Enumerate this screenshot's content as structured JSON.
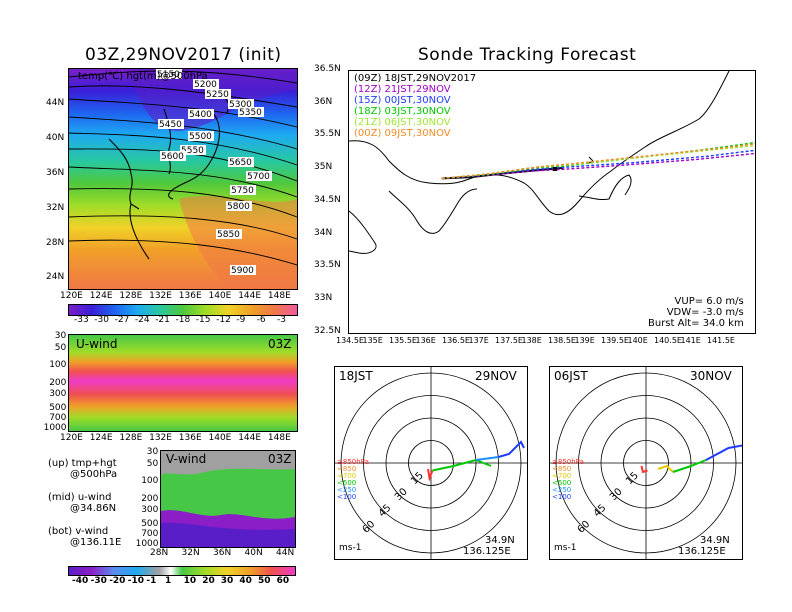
{
  "left_title": "03Z,29NOV2017 (init)",
  "right_title": "Sonde Tracking Forecast",
  "map_panel": {
    "overlay_label": "temp(℃) hgt(m)@500hPa",
    "contour_labels": [
      "5150",
      "5200",
      "5250",
      "5300",
      "5350",
      "5400",
      "5450",
      "5500",
      "5550",
      "5600",
      "5650",
      "5700",
      "5750",
      "5800",
      "5850",
      "5900"
    ],
    "lat_ticks": [
      "44N",
      "40N",
      "36N",
      "32N",
      "28N",
      "24N"
    ],
    "lon_ticks": [
      "120E",
      "124E",
      "128E",
      "132E",
      "136E",
      "140E",
      "144E",
      "148E"
    ],
    "colorbar_ticks": [
      "-33",
      "-30",
      "-27",
      "-24",
      "-21",
      "-18",
      "-15",
      "-12",
      "-9",
      "-6",
      "-3"
    ]
  },
  "uwind_panel": {
    "label": "U-wind",
    "time": "03Z",
    "p_ticks": [
      "30",
      "50",
      "100",
      "200",
      "300",
      "500",
      "700",
      "1000"
    ],
    "lon_ticks": [
      "120E",
      "124E",
      "128E",
      "132E",
      "136E",
      "140E",
      "144E",
      "148E"
    ]
  },
  "vwind_panel": {
    "label": "V-wind",
    "time": "03Z",
    "p_ticks": [
      "30",
      "50",
      "100",
      "200",
      "300",
      "500",
      "700",
      "1000"
    ],
    "lat_ticks": [
      "28N",
      "32N",
      "36N",
      "40N",
      "44N"
    ]
  },
  "wind_colorbar_ticks": [
    "-40",
    "-30",
    "-20",
    "-10",
    "-1",
    "1",
    "10",
    "20",
    "30",
    "40",
    "50",
    "60"
  ],
  "legend_notes": [
    {
      "line1": "(up) tmp+hgt",
      "line2": "@500hPa"
    },
    {
      "line1": "(mid) u-wind",
      "line2": "@34.86N"
    },
    {
      "line1": "(bot) v-wind",
      "line2": "@136.11E"
    }
  ],
  "tracking_panel": {
    "legend": [
      {
        "text": "(09Z)  18JST,29NOV2017",
        "color": "#000000"
      },
      {
        "text": "(12Z)  21JST,29NOV",
        "color": "#a000c8"
      },
      {
        "text": "(15Z)  00JST,30NOV",
        "color": "#1e3cff"
      },
      {
        "text": "(18Z)  03JST,30NOV",
        "color": "#00c800"
      },
      {
        "text": "(21Z)  06JST,30NOV",
        "color": "#a0e632"
      },
      {
        "text": "(00Z)  09JST,30NOV",
        "color": "#f08c28"
      }
    ],
    "lat_ticks": [
      "36.5N",
      "36N",
      "35.5N",
      "35N",
      "34.5N",
      "34N",
      "33.5N",
      "33N",
      "32.5N"
    ],
    "lon_ticks": [
      "134.5E",
      "135E",
      "135.5E",
      "136E",
      "136.5E",
      "137E",
      "137.5E",
      "138E",
      "138.5E",
      "139E",
      "139.5E",
      "140E",
      "140.5E",
      "141E",
      "141.5E"
    ],
    "params": [
      "VUP=  6.0 m/s",
      "VDW= -3.0 m/s",
      "Burst Alt=  34.0  km"
    ]
  },
  "hodographs": [
    {
      "jst": "18JST",
      "date": "29NOV"
    },
    {
      "jst": "06JST",
      "date": "30NOV"
    }
  ],
  "hodo_common": {
    "ring_labels": [
      "15",
      "30",
      "45",
      "60"
    ],
    "unit": "ms-1",
    "lat": "34.9N",
    "lon": "136.125E",
    "levels": [
      {
        "text": "≥850hPa",
        "color": "#ff3030"
      },
      {
        "text": "<850",
        "color": "#f08c28"
      },
      {
        "text": "<700",
        "color": "#e6c800"
      },
      {
        "text": "<500",
        "color": "#00c800"
      },
      {
        "text": "<250",
        "color": "#1e90ff"
      },
      {
        "text": "<100",
        "color": "#1e3cff"
      }
    ]
  },
  "chart_data": [
    {
      "type": "heatmap",
      "title": "03Z,29NOV2017 (init)",
      "variable": "temp(℃) hgt(m)@500hPa",
      "xlim": [
        120,
        150
      ],
      "ylim": [
        22,
        48
      ],
      "x_ticks": [
        120,
        124,
        128,
        132,
        136,
        140,
        144,
        148
      ],
      "y_ticks": [
        24,
        28,
        32,
        36,
        40,
        44
      ],
      "color_levels": [
        -33,
        -30,
        -27,
        -24,
        -21,
        -18,
        -15,
        -12,
        -9,
        -6,
        -3
      ],
      "height_contours": [
        5150,
        5200,
        5250,
        5300,
        5350,
        5400,
        5450,
        5500,
        5550,
        5600,
        5650,
        5700,
        5750,
        5800,
        5850,
        5900
      ]
    },
    {
      "type": "heatmap",
      "variable": "U-wind @34.86N",
      "xlim": [
        120,
        150
      ],
      "y_pressure_levels": [
        30,
        50,
        100,
        200,
        300,
        500,
        700,
        1000
      ],
      "max_region": {
        "p_top": 150,
        "p_bottom": 300
      }
    },
    {
      "type": "heatmap",
      "variable": "V-wind @136.11E",
      "xlim": [
        28,
        44
      ],
      "y_pressure_levels": [
        30,
        50,
        100,
        200,
        300,
        500,
        700,
        1000
      ],
      "color_levels": [
        -40,
        -30,
        -20,
        -10,
        -1,
        1,
        10,
        20,
        30,
        40,
        50,
        60
      ]
    },
    {
      "type": "line",
      "title": "Sonde Tracking Forecast",
      "xlim": [
        134.5,
        141.5
      ],
      "ylim": [
        32.5,
        36.5
      ],
      "launch": {
        "lon": 136.125,
        "lat": 34.86
      },
      "series": [
        {
          "name": "(09Z)  18JST,29NOV2017",
          "x": [
            136.1,
            136.6,
            137.2,
            137.8,
            138.2
          ],
          "y": [
            34.86,
            34.88,
            34.94,
            34.99,
            35.02
          ]
        },
        {
          "name": "(12Z)  21JST,29NOV",
          "x": [
            136.1,
            136.8,
            137.6,
            138.2,
            139.2,
            140.5,
            141.6
          ],
          "y": [
            34.86,
            34.9,
            34.97,
            35.0,
            35.06,
            35.15,
            35.25
          ]
        },
        {
          "name": "(15Z)  00JST,30NOV",
          "x": [
            136.1,
            136.8,
            137.6,
            138.2,
            139.4,
            140.7,
            141.6
          ],
          "y": [
            34.86,
            34.91,
            34.99,
            35.03,
            35.1,
            35.2,
            35.3
          ]
        },
        {
          "name": "(18Z)  03JST,30NOV",
          "x": [
            136.1,
            136.9,
            137.7,
            138.2,
            139.5,
            140.8,
            141.6
          ],
          "y": [
            34.86,
            34.92,
            35.02,
            35.05,
            35.18,
            35.32,
            35.42
          ]
        },
        {
          "name": "(21Z)  06JST,30NOV",
          "x": [
            136.1,
            136.9,
            137.7,
            138.3,
            139.5,
            140.8,
            141.6
          ],
          "y": [
            34.86,
            34.93,
            35.03,
            35.07,
            35.18,
            35.3,
            35.37
          ]
        },
        {
          "name": "(00Z)  09JST,30NOV",
          "x": [
            136.1,
            136.9,
            137.8,
            138.3,
            139.6,
            140.9,
            141.6
          ],
          "y": [
            34.86,
            34.93,
            35.04,
            35.08,
            35.2,
            35.32,
            35.4
          ]
        }
      ]
    },
    {
      "type": "scatter",
      "title": "18JST 29NOV",
      "rings": [
        15,
        30,
        45,
        60
      ],
      "hodograph": [
        {
          "level": "≥850hPa",
          "u": [
            -2,
            -1,
            1
          ],
          "v": [
            -4,
            -10,
            -5
          ]
        },
        {
          "level": "<500",
          "u": [
            1,
            15,
            30,
            40
          ],
          "v": [
            -5,
            -2,
            2,
            -2
          ]
        },
        {
          "level": "<250",
          "u": [
            30,
            45
          ],
          "v": [
            2,
            4
          ]
        },
        {
          "level": "<100",
          "u": [
            45,
            52,
            60,
            62
          ],
          "v": [
            4,
            6,
            14,
            10
          ]
        }
      ]
    },
    {
      "type": "scatter",
      "title": "06JST 30NOV",
      "rings": [
        15,
        30,
        45,
        60
      ],
      "hodograph": [
        {
          "level": "≥850hPa",
          "u": [
            -3,
            -2,
            1
          ],
          "v": [
            -2,
            -6,
            -5
          ]
        },
        {
          "level": "<700",
          "u": [
            8,
            14,
            18
          ],
          "v": [
            -4,
            -2,
            -6
          ]
        },
        {
          "level": "<500",
          "u": [
            18,
            30,
            40
          ],
          "v": [
            -6,
            -2,
            2
          ]
        },
        {
          "level": "<100",
          "u": [
            40,
            55,
            66
          ],
          "v": [
            2,
            10,
            12
          ]
        }
      ]
    }
  ]
}
